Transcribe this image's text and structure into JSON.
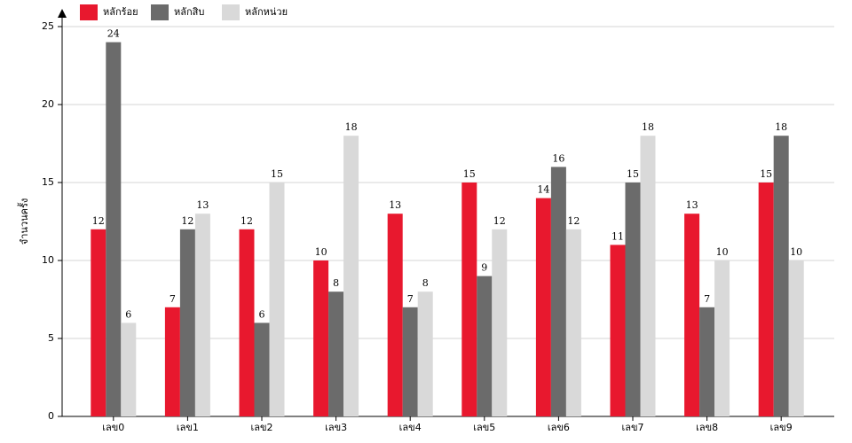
{
  "chart_data": {
    "type": "bar",
    "y_label": "จำนวนครั้ง",
    "categories": [
      "เลข0",
      "เลข1",
      "เลข2",
      "เลข3",
      "เลข4",
      "เลข5",
      "เลข6",
      "เลข7",
      "เลข8",
      "เลข9"
    ],
    "series": [
      {
        "name": "หลักร้อย",
        "color": "#e8182e",
        "values": [
          12,
          7,
          12,
          10,
          13,
          15,
          14,
          11,
          13,
          15
        ]
      },
      {
        "name": "หลักสิบ",
        "color": "#6b6b6b",
        "values": [
          24,
          12,
          6,
          8,
          7,
          9,
          16,
          15,
          7,
          18
        ]
      },
      {
        "name": "หลักหน่วย",
        "color": "#d9d9d9",
        "values": [
          6,
          13,
          15,
          18,
          8,
          12,
          12,
          18,
          10,
          10
        ]
      }
    ],
    "ylim": [
      0,
      25
    ],
    "yticks": [
      0,
      5,
      10,
      15,
      20,
      25
    ],
    "grid": true
  }
}
